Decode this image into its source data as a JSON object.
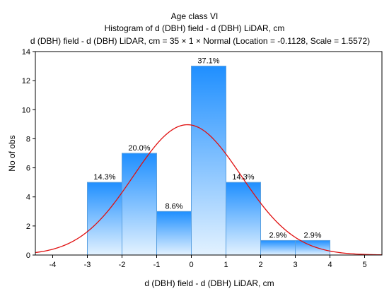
{
  "chart_data": {
    "type": "bar",
    "title": "Age class VI",
    "subtitle": "Histogram of d (DBH) field - d (DBH) LiDAR, cm",
    "formula": "d (DBH) field - d (DBH) LiDAR, cm = 35 × 1 × Normal (Location = -0.1128, Scale = 1.5572)",
    "xlabel": "d (DBH) field - d (DBH) LiDAR, cm",
    "ylabel": "No of obs",
    "xlim": [
      -4.5,
      5.5
    ],
    "ylim": [
      0,
      14
    ],
    "x_ticks": [
      "-4",
      "-3",
      "-2",
      "-1",
      "0",
      "1",
      "2",
      "3",
      "4",
      "5"
    ],
    "y_ticks": [
      "0",
      "2",
      "4",
      "6",
      "8",
      "10",
      "12",
      "14"
    ],
    "bins": [
      {
        "from": -3,
        "to": -2,
        "count": 5,
        "label": "14.3%"
      },
      {
        "from": -2,
        "to": -1,
        "count": 7,
        "label": "20.0%"
      },
      {
        "from": -1,
        "to": 0,
        "count": 3,
        "label": "8.6%"
      },
      {
        "from": 0,
        "to": 1,
        "count": 13,
        "label": "37.1%"
      },
      {
        "from": 1,
        "to": 2,
        "count": 5,
        "label": "14.3%"
      },
      {
        "from": 2,
        "to": 3,
        "count": 1,
        "label": "2.9%"
      },
      {
        "from": 3,
        "to": 4,
        "count": 1,
        "label": "2.9%"
      }
    ],
    "normal_fit": {
      "n": 35,
      "bin_width": 1,
      "location": -0.1128,
      "scale": 1.5572
    },
    "colors": {
      "bar_top": "#1f8fff",
      "bar_bottom": "#e3f2ff",
      "bar_edge": "#5aa0e0",
      "curve": "#e01010",
      "axis": "#000000"
    }
  }
}
